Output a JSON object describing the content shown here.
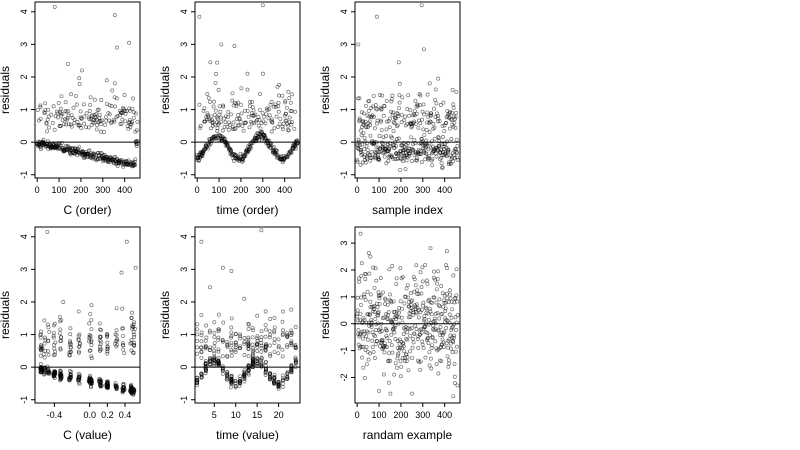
{
  "chart_data": [
    {
      "type": "scatter",
      "xlabel": "C (order)",
      "ylabel": "residuals",
      "xlim": [
        -10,
        470
      ],
      "ylim": [
        -1.1,
        4.3
      ],
      "x_ticks": [
        0,
        100,
        200,
        300,
        400
      ],
      "x_tick_labels": [
        "0",
        "100",
        "200",
        "300",
        "400"
      ],
      "y_ticks": [
        -1,
        0,
        1,
        2,
        3,
        4
      ],
      "y_tick_labels": [
        "-1",
        "0",
        "1",
        "2",
        "3",
        "4"
      ],
      "hline": 0,
      "pattern": "stepped_order",
      "outliers": [
        [
          80,
          4.15
        ],
        [
          355,
          3.9
        ],
        [
          420,
          3.05
        ],
        [
          365,
          2.9
        ],
        [
          140,
          2.4
        ],
        [
          205,
          2.2
        ]
      ],
      "marker": "open-circle",
      "grid": false
    },
    {
      "type": "scatter",
      "xlabel": "time (order)",
      "ylabel": "residuals",
      "xlim": [
        -10,
        470
      ],
      "ylim": [
        -1.1,
        4.3
      ],
      "x_ticks": [
        0,
        100,
        200,
        300,
        400
      ],
      "x_tick_labels": [
        "0",
        "100",
        "200",
        "300",
        "400"
      ],
      "y_ticks": [
        -1,
        0,
        1,
        2,
        3,
        4
      ],
      "y_tick_labels": [
        "-1",
        "0",
        "1",
        "2",
        "3",
        "4"
      ],
      "hline": 0,
      "pattern": "wave",
      "outliers": [
        [
          10,
          3.85
        ],
        [
          300,
          4.2
        ],
        [
          110,
          3.0
        ],
        [
          170,
          2.95
        ],
        [
          60,
          2.45
        ],
        [
          230,
          2.1
        ]
      ],
      "marker": "open-circle",
      "grid": false
    },
    {
      "type": "scatter",
      "xlabel": "sample index",
      "ylabel": "residuals",
      "xlim": [
        -10,
        470
      ],
      "ylim": [
        -1.1,
        4.3
      ],
      "x_ticks": [
        0,
        100,
        200,
        300,
        400
      ],
      "x_tick_labels": [
        "0",
        "100",
        "200",
        "300",
        "400"
      ],
      "y_ticks": [
        -1,
        0,
        1,
        2,
        3,
        4
      ],
      "y_tick_labels": [
        "-1",
        "0",
        "1",
        "2",
        "3",
        "4"
      ],
      "hline": 0,
      "pattern": "random_index",
      "outliers": [
        [
          5,
          3.0
        ],
        [
          90,
          3.85
        ],
        [
          295,
          4.2
        ],
        [
          305,
          2.85
        ],
        [
          370,
          1.95
        ],
        [
          190,
          2.45
        ]
      ],
      "marker": "open-circle",
      "grid": false
    },
    {
      "type": "scatter",
      "xlabel": "C (value)",
      "ylabel": "residuals",
      "xlim": [
        -0.62,
        0.57
      ],
      "ylim": [
        -1.1,
        4.3
      ],
      "x_ticks": [
        -0.4,
        0.0,
        0.2,
        0.4
      ],
      "x_tick_labels": [
        "-0.4",
        "0.0",
        "0.2",
        "0.4"
      ],
      "y_ticks": [
        -1,
        0,
        1,
        2,
        3,
        4
      ],
      "y_tick_labels": [
        "-1",
        "0",
        "1",
        "2",
        "3",
        "4"
      ],
      "hline": 0,
      "pattern": "c_value",
      "outliers": [
        [
          -0.48,
          4.15
        ],
        [
          0.42,
          3.85
        ],
        [
          0.52,
          3.05
        ],
        [
          0.36,
          2.9
        ],
        [
          -0.3,
          2.0
        ],
        [
          0.02,
          1.9
        ]
      ],
      "marker": "open-circle",
      "grid": false
    },
    {
      "type": "scatter",
      "xlabel": "time (value)",
      "ylabel": "residuals",
      "xlim": [
        0.5,
        25.0
      ],
      "ylim": [
        -1.1,
        4.3
      ],
      "x_ticks": [
        5,
        10,
        15,
        20
      ],
      "x_tick_labels": [
        "5",
        "10",
        "15",
        "20"
      ],
      "y_ticks": [
        -1,
        0,
        1,
        2,
        3,
        4
      ],
      "y_tick_labels": [
        "-1",
        "0",
        "1",
        "2",
        "3",
        "4"
      ],
      "hline": 0,
      "pattern": "time_value",
      "outliers": [
        [
          2,
          3.85
        ],
        [
          16,
          4.2
        ],
        [
          7,
          3.05
        ],
        [
          9,
          2.95
        ],
        [
          4,
          2.45
        ],
        [
          12,
          2.1
        ]
      ],
      "marker": "open-circle",
      "grid": false
    },
    {
      "type": "scatter",
      "xlabel": "randam example",
      "ylabel": "residuals",
      "xlim": [
        -10,
        470
      ],
      "ylim": [
        -2.95,
        3.6
      ],
      "x_ticks": [
        0,
        100,
        200,
        300,
        400
      ],
      "x_tick_labels": [
        "0",
        "100",
        "200",
        "300",
        "400"
      ],
      "y_ticks": [
        -2,
        -1,
        0,
        1,
        2,
        3
      ],
      "y_tick_labels": [
        "-2",
        "-1",
        "0",
        "1",
        "2",
        "3"
      ],
      "hline": 0,
      "pattern": "normal",
      "outliers": [
        [
          15,
          3.35
        ],
        [
          410,
          2.7
        ],
        [
          60,
          2.5
        ],
        [
          440,
          -2.7
        ],
        [
          100,
          -2.5
        ]
      ],
      "marker": "open-circle",
      "grid": false
    }
  ]
}
